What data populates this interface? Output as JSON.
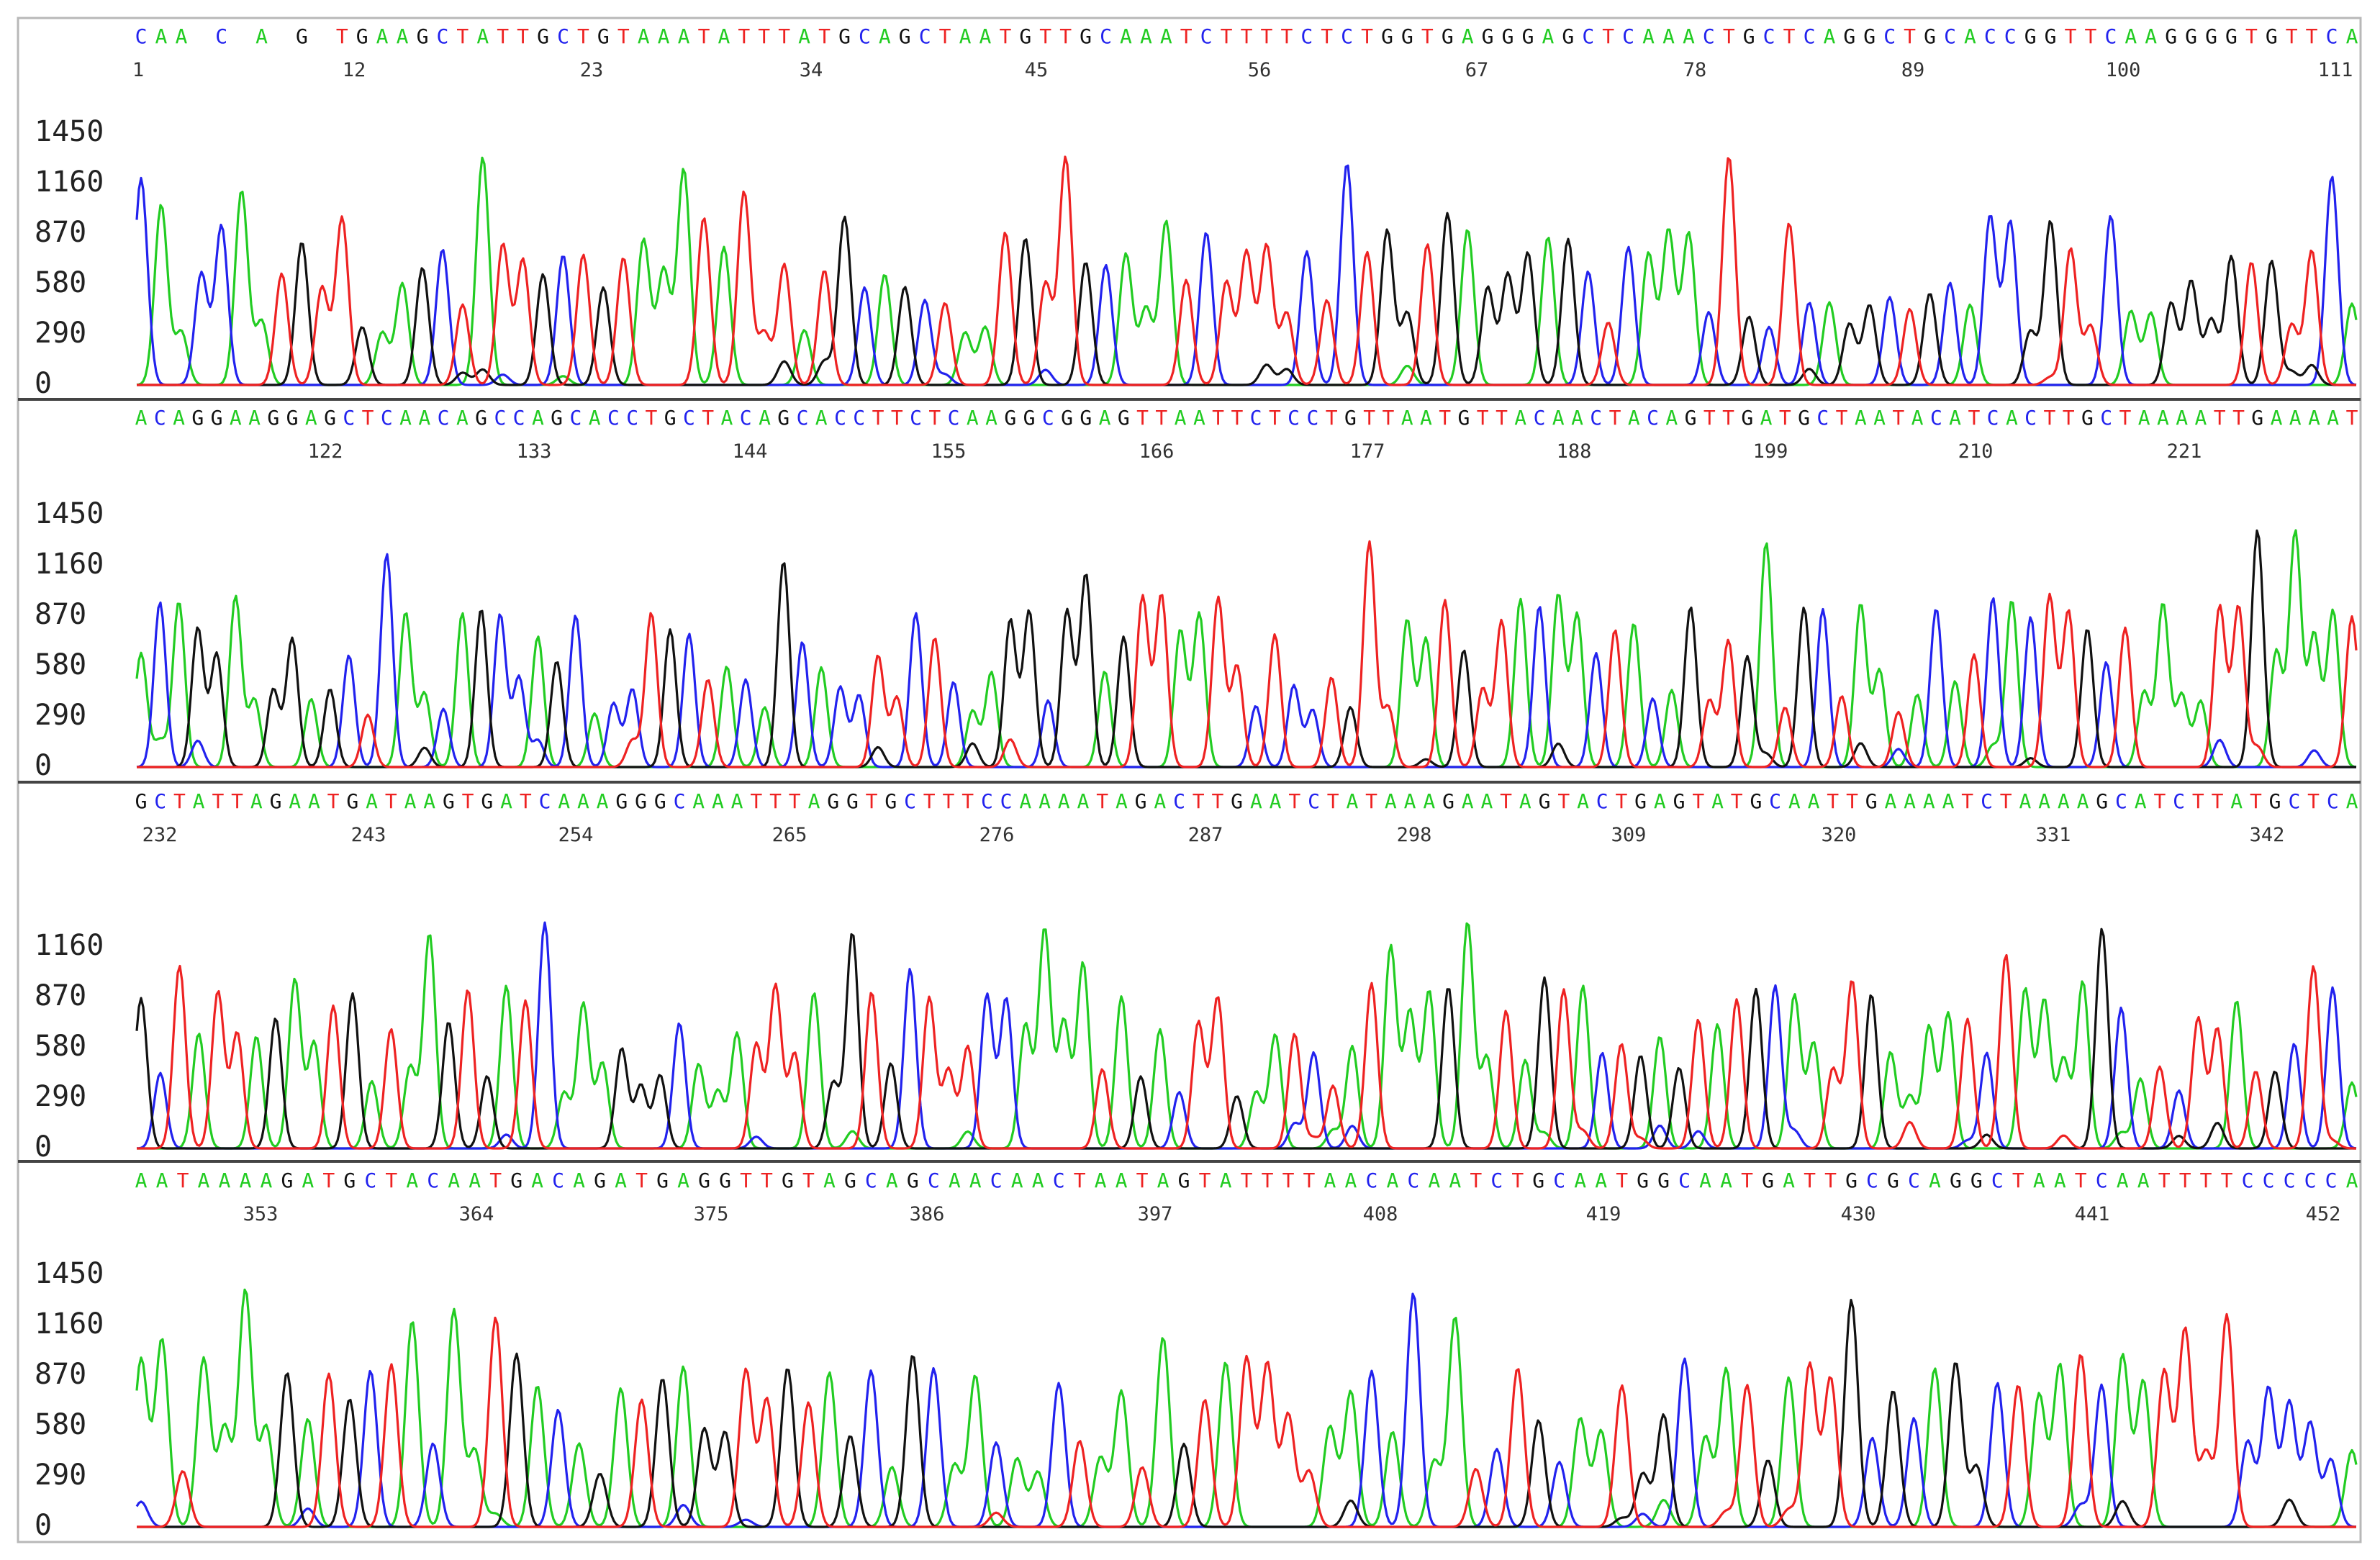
{
  "chart_data": {
    "type": "line",
    "title": "",
    "xlabel": "",
    "ylabel": "",
    "trace_colors": {
      "A": "#22cc22",
      "C": "#2222ee",
      "G": "#111111",
      "T": "#ee2222"
    },
    "panels": [
      {
        "sequence": "CAA C A G TGAAGCTATTGCTGTAAATATTTATGCAGCTAATGTTGCAAATCTTTTCTCTGGTGAGGGAGCTCAAACTGCTCAGGCTGCACCGGTTCAAGGGGTGTTCA",
        "position_ticks": [
          "1",
          "12",
          "23",
          "34",
          "45",
          "56",
          "67",
          "78",
          "89",
          "100",
          "111"
        ],
        "y_ticks": [
          "0",
          "290",
          "580",
          "870",
          "1160",
          "1450"
        ],
        "y_max": 1700
      },
      {
        "sequence": "ACAGGAAGGAGCTCAACAGCCAGCACCTGCTACAGCACCTTCTCAAGGCGGAGTTAATTCTCCTGTTAATGTTACAACTACAGTTGATGCTAATACATCACTTGCTAAAATTGAAAAT",
        "position_ticks": [
          "122",
          "133",
          "144",
          "155",
          "166",
          "177",
          "188",
          "199",
          "210",
          "221"
        ],
        "y_ticks": [
          "0",
          "290",
          "580",
          "870",
          "1160",
          "1450"
        ],
        "y_max": 1700
      },
      {
        "sequence": "GCTATTAGAATGATAAGTGATCAAAGGGCAAATTTAGGTGCTTTCCAAAATAGACTTGAATCTATAAAGAATAGTACTGAGTATGCAATTGAAAATCTAAAAGCATCTTATGCTCA",
        "position_ticks": [
          "232",
          "243",
          "254",
          "265",
          "276",
          "287",
          "298",
          "309",
          "320",
          "331",
          "342"
        ],
        "y_ticks": [
          "0",
          "290",
          "580",
          "870",
          "1160"
        ],
        "y_max": 1450
      },
      {
        "sequence": "AATAAAAGATGCTACAATGACAGATGAGGTTGTAGCAGCAACAACTAATAGTATTTTAACACAATCTGCAATGGCAATGATTGCGCAGGCTAATCAATTTTCCCCCA",
        "position_ticks": [
          "353",
          "364",
          "375",
          "386",
          "397",
          "408",
          "419",
          "430",
          "441",
          "452"
        ],
        "y_ticks": [
          "0",
          "290",
          "580",
          "870",
          "1160",
          "1450"
        ],
        "y_max": 1700
      }
    ]
  }
}
